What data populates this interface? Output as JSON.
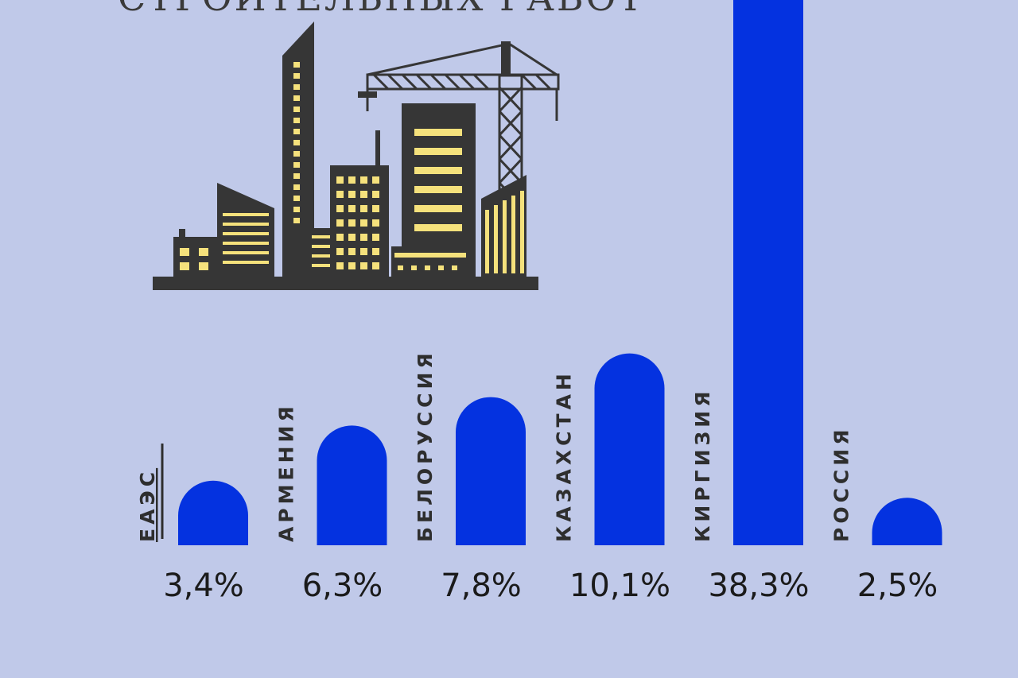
{
  "title": "СТРОИТЕЛЬНЫХ РАБОТ",
  "colors": {
    "background": "#c0c9e9",
    "bar": "#0432e0",
    "building": "#363636",
    "window": "#f5e17c"
  },
  "illustration": {
    "icon": "city-construction-crane-icon"
  },
  "chart_data": {
    "type": "bar",
    "categories": [
      "ЕАЭС",
      "АРМЕНИЯ",
      "БЕЛОРУССИЯ",
      "КАЗАХСТАН",
      "КИРГИЗИЯ",
      "РОССИЯ"
    ],
    "values": [
      3.4,
      6.3,
      7.8,
      10.1,
      38.3,
      2.5
    ],
    "value_labels": [
      "3,4%",
      "6,3%",
      "7,8%",
      "10,1%",
      "38,3%",
      "2,5%"
    ],
    "unit": "%",
    "highlighted_category": "ЕАЭС",
    "grid": false,
    "legend": "none",
    "title": ""
  }
}
